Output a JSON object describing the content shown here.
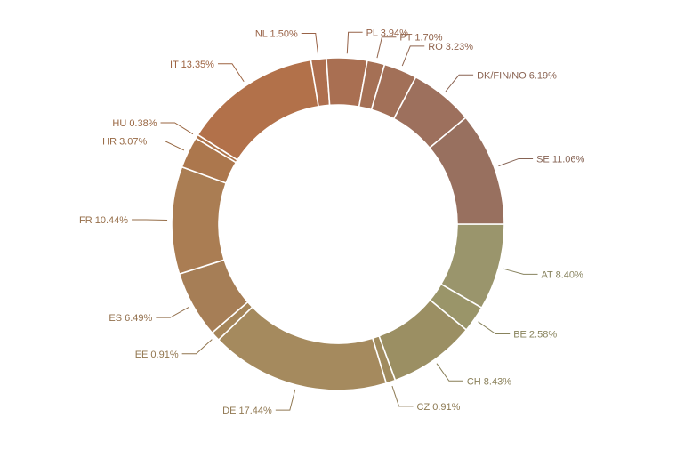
{
  "chart_data": {
    "type": "pie",
    "donut": true,
    "slices": [
      {
        "label": "AT 8.40%",
        "value": 8.4,
        "color": "#9a956c"
      },
      {
        "label": "BE 2.58%",
        "value": 2.58,
        "color": "#9a9569"
      },
      {
        "label": "CH 8.43%",
        "value": 8.43,
        "color": "#9b8f63"
      },
      {
        "label": "CZ 0.91%",
        "value": 0.91,
        "color": "#a08b5e"
      },
      {
        "label": "DE 17.44%",
        "value": 17.44,
        "color": "#a58a5e"
      },
      {
        "label": "EE 0.91%",
        "value": 0.91,
        "color": "#a58559"
      },
      {
        "label": "ES 6.49%",
        "value": 6.49,
        "color": "#a67e56"
      },
      {
        "label": "FR 10.44%",
        "value": 10.44,
        "color": "#aa7d53"
      },
      {
        "label": "HR 3.07%",
        "value": 3.07,
        "color": "#ac774d"
      },
      {
        "label": "HU 0.38%",
        "value": 0.38,
        "color": "#ae744a"
      },
      {
        "label": "IT 13.35%",
        "value": 13.35,
        "color": "#b2714a"
      },
      {
        "label": "NL 1.50%",
        "value": 1.5,
        "color": "#ae6f4f"
      },
      {
        "label": "PL 3.94%",
        "value": 3.94,
        "color": "#a96f52"
      },
      {
        "label": "PT 1.70%",
        "value": 1.7,
        "color": "#a57055"
      },
      {
        "label": "RO 3.23%",
        "value": 3.23,
        "color": "#a27058"
      },
      {
        "label": "DK/FIN/NO 6.19%",
        "value": 6.19,
        "color": "#9d705d"
      },
      {
        "label": "SE 11.06%",
        "value": 11.06,
        "color": "#98705f"
      }
    ]
  }
}
